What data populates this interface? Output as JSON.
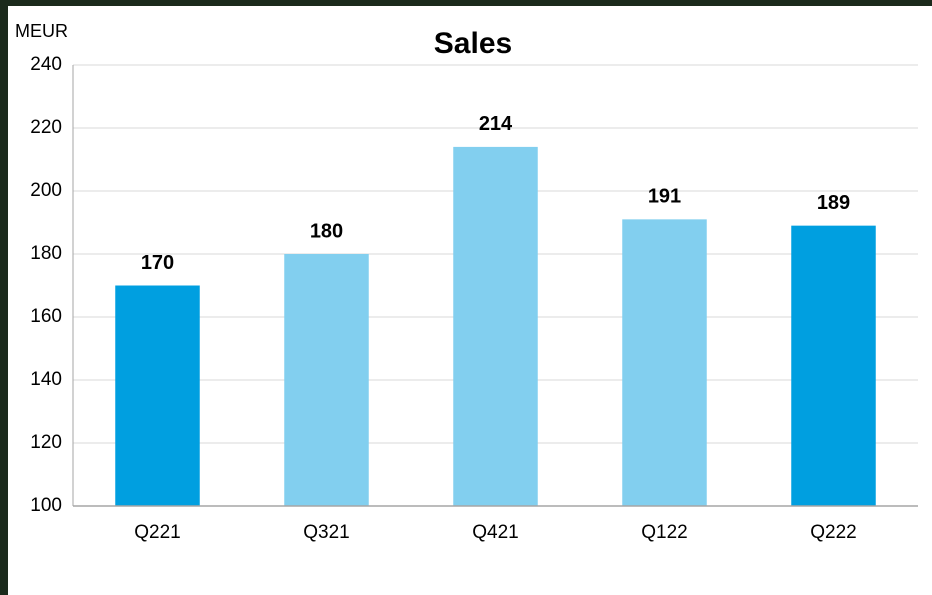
{
  "chart_data": {
    "type": "bar",
    "title": "Sales",
    "y_label": "MEUR",
    "categories": [
      "Q221",
      "Q321",
      "Q421",
      "Q122",
      "Q222"
    ],
    "values": [
      170,
      180,
      214,
      191,
      189
    ],
    "colors": [
      "#009fe0",
      "#82cfef",
      "#82cfef",
      "#82cfef",
      "#009fe0"
    ],
    "ylim": [
      100,
      240
    ],
    "yticks": [
      100,
      120,
      140,
      160,
      180,
      200,
      220,
      240
    ],
    "grid": true
  }
}
